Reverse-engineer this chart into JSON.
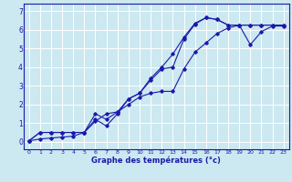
{
  "xlabel": "Graphe des températures (°c)",
  "bg_color": "#cce8f0",
  "grid_color": "#ffffff",
  "line_color": "#1a1aaa",
  "xlim": [
    -0.5,
    23.5
  ],
  "ylim": [
    -0.4,
    7.4
  ],
  "xticks": [
    0,
    1,
    2,
    3,
    4,
    5,
    6,
    7,
    8,
    9,
    10,
    11,
    12,
    13,
    14,
    15,
    16,
    17,
    18,
    19,
    20,
    21,
    22,
    23
  ],
  "yticks": [
    0,
    1,
    2,
    3,
    4,
    5,
    6,
    7
  ],
  "line1_x": [
    0,
    1,
    2,
    3,
    4,
    5,
    6,
    7,
    8,
    9,
    10,
    11,
    12,
    13,
    14,
    15,
    16,
    17,
    18,
    19,
    20,
    21,
    22,
    23
  ],
  "line1_y": [
    0.05,
    0.5,
    0.5,
    0.5,
    0.5,
    0.5,
    1.1,
    1.5,
    1.6,
    2.3,
    2.6,
    3.3,
    3.9,
    4.0,
    5.5,
    6.3,
    6.65,
    6.55,
    6.25,
    6.25,
    6.25,
    6.25,
    6.25,
    6.25
  ],
  "line2_x": [
    0,
    1,
    2,
    3,
    4,
    5,
    6,
    7,
    8,
    9,
    10,
    11,
    12,
    13,
    14,
    15,
    16,
    17,
    18,
    19,
    20,
    21,
    22,
    23
  ],
  "line2_y": [
    0.05,
    0.5,
    0.5,
    0.5,
    0.5,
    0.5,
    1.2,
    0.85,
    1.5,
    2.3,
    2.6,
    3.4,
    4.0,
    4.7,
    5.6,
    6.35,
    6.65,
    6.55,
    6.25,
    6.25,
    6.25,
    6.25,
    6.25,
    6.25
  ],
  "line3_x": [
    0,
    1,
    2,
    3,
    4,
    5,
    6,
    7,
    8,
    9,
    10,
    11,
    12,
    13,
    14,
    15,
    16,
    17,
    18,
    19,
    20,
    21,
    22,
    23
  ],
  "line3_y": [
    0.05,
    0.15,
    0.2,
    0.25,
    0.3,
    0.5,
    1.5,
    1.2,
    1.6,
    2.0,
    2.4,
    2.6,
    2.7,
    2.7,
    3.9,
    4.8,
    5.3,
    5.8,
    6.1,
    6.25,
    5.2,
    5.9,
    6.2,
    6.2
  ]
}
